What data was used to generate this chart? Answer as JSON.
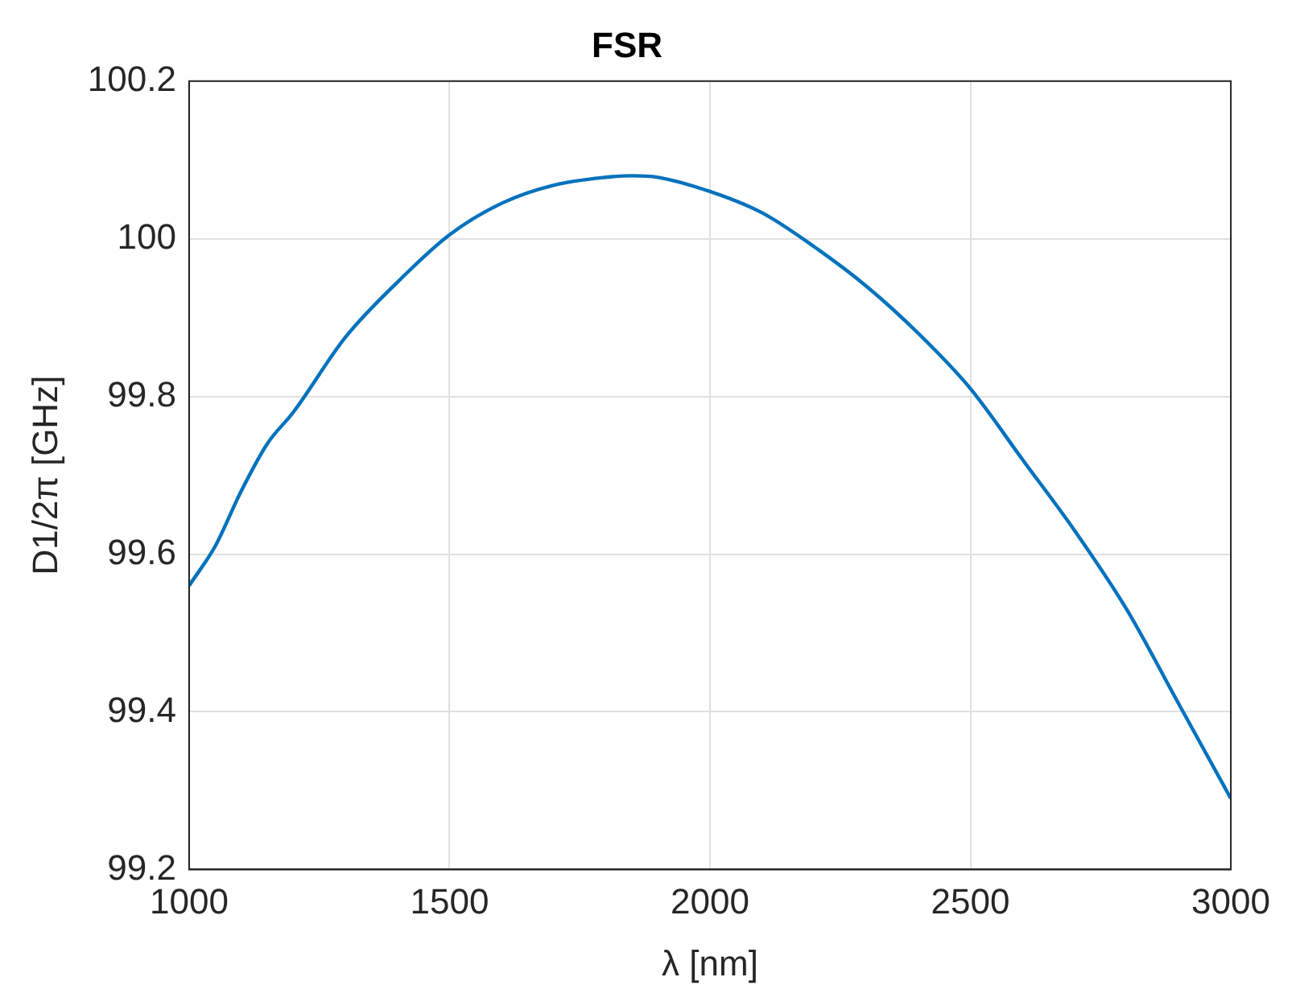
{
  "chart_data": {
    "type": "line",
    "title": "FSR",
    "xlabel": "λ [nm]",
    "ylabel": "D1/2π [GHz]",
    "x": [
      1000,
      1050,
      1100,
      1150,
      1200,
      1300,
      1400,
      1500,
      1600,
      1700,
      1800,
      1850,
      1900,
      2000,
      2100,
      2200,
      2300,
      2400,
      2500,
      2600,
      2700,
      2800,
      2900,
      3000
    ],
    "series": [
      {
        "color": "#0072bd",
        "values": [
          99.56,
          99.61,
          99.68,
          99.74,
          99.78,
          99.875,
          99.945,
          100.005,
          100.045,
          100.068,
          100.078,
          100.08,
          100.078,
          100.06,
          100.033,
          99.99,
          99.94,
          99.88,
          99.81,
          99.72,
          99.63,
          99.53,
          99.41,
          99.29
        ]
      }
    ],
    "xlim": [
      1000,
      3000
    ],
    "xticks": [
      1000,
      1500,
      2000,
      2500,
      3000
    ],
    "ylim": [
      99.2,
      100.2
    ],
    "yticks": [
      99.2,
      99.4,
      99.6,
      99.8,
      100,
      100.2
    ],
    "grid": true,
    "legend": false,
    "marker": "none",
    "line_style": "solid"
  }
}
